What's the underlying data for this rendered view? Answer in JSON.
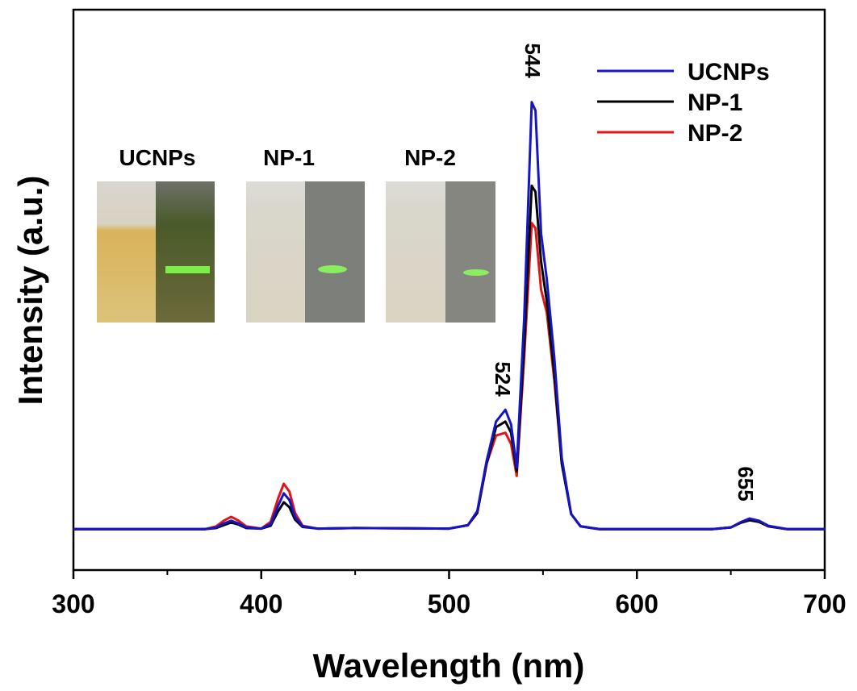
{
  "chart_data": {
    "type": "line",
    "x_label": "Wavelength (nm)",
    "y_label": "Intensity (a.u.)",
    "xlim": [
      300,
      700
    ],
    "xticks": [
      300,
      400,
      500,
      600,
      700
    ],
    "xminorticks": [
      350,
      450,
      550,
      650
    ],
    "ylim": [
      0,
      100
    ],
    "legend": "top-right",
    "annotations": [
      "544",
      "524",
      "655"
    ],
    "inset_labels": [
      "UCNPs",
      "NP-1",
      "NP-2"
    ],
    "x": [
      300,
      370,
      376,
      380,
      384,
      388,
      392,
      400,
      405,
      409,
      412,
      415,
      418,
      422,
      430,
      450,
      500,
      510,
      515,
      520,
      525,
      530,
      533,
      536,
      540,
      544,
      546,
      549,
      552,
      556,
      560,
      565,
      570,
      580,
      640,
      650,
      655,
      660,
      665,
      670,
      680,
      700
    ],
    "series": [
      {
        "name": "UCNPs",
        "color": "#1515c8",
        "values": [
          7.3,
          7.3,
          7.6,
          8.3,
          8.8,
          8.3,
          7.6,
          7.4,
          8.2,
          11.5,
          13.7,
          12.5,
          9.5,
          7.8,
          7.4,
          7.5,
          7.4,
          8.0,
          10.5,
          19.5,
          26.5,
          28.6,
          26.0,
          18.3,
          45,
          83.5,
          82,
          60,
          52,
          38,
          20,
          10,
          7.8,
          7.3,
          7.3,
          7.6,
          8.5,
          9.2,
          8.8,
          7.9,
          7.3,
          7.3
        ]
      },
      {
        "name": "NP-1",
        "color": "#000000",
        "values": [
          7.3,
          7.3,
          7.5,
          8.0,
          8.5,
          8.1,
          7.5,
          7.4,
          7.9,
          10.5,
          12.1,
          11.2,
          9.0,
          7.7,
          7.4,
          7.5,
          7.4,
          8.0,
          10.2,
          19.0,
          25.5,
          26.5,
          24.5,
          17.6,
          40,
          68.6,
          67.5,
          55,
          48,
          35,
          19,
          10,
          7.8,
          7.3,
          7.3,
          7.6,
          8.4,
          8.9,
          8.6,
          7.8,
          7.3,
          7.3
        ]
      },
      {
        "name": "NP-2",
        "color": "#e01515",
        "values": [
          7.3,
          7.3,
          7.8,
          8.8,
          9.5,
          8.8,
          7.8,
          7.4,
          8.6,
          12.8,
          15.4,
          14.0,
          10.2,
          7.9,
          7.4,
          7.5,
          7.4,
          8.0,
          10.2,
          19.0,
          24.0,
          24.5,
          22.5,
          16.8,
          38,
          61.9,
          61,
          50,
          46,
          34,
          19,
          10,
          7.8,
          7.3,
          7.3,
          7.6,
          8.4,
          8.9,
          8.6,
          7.8,
          7.3,
          7.3
        ]
      }
    ]
  }
}
